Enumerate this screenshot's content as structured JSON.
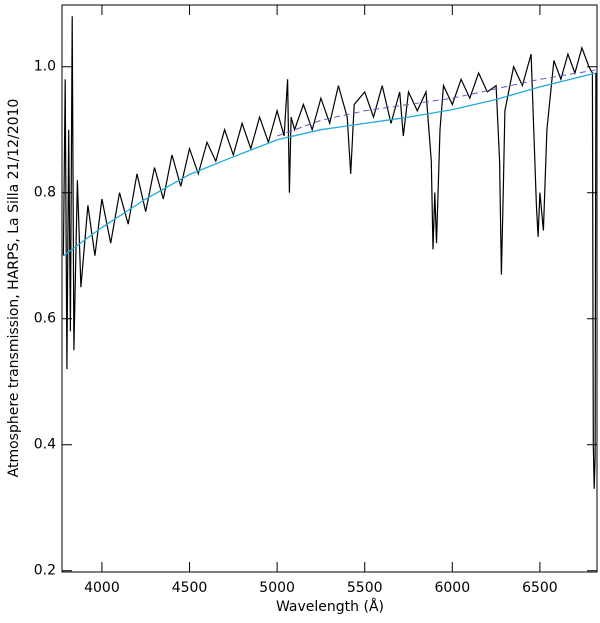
{
  "chart_data": {
    "type": "line",
    "xlabel": "Wavelength (Å)",
    "ylabel": "Atmosphere transmission, HARPS, La Silla 21/12/2010",
    "xlim": [
      3772,
      6826
    ],
    "ylim": [
      0.198,
      1.098
    ],
    "xticks": [
      4000,
      4500,
      5000,
      5500,
      6000,
      6500
    ],
    "yticks": [
      0.2,
      0.4,
      0.6,
      0.8,
      {
        "value": 1.0,
        "label": "1.0"
      }
    ],
    "series": [
      {
        "color": "#000000",
        "style": "solid",
        "x": [
          3780,
          3790,
          3800,
          3810,
          3820,
          3830,
          3840,
          3860,
          3880,
          3920,
          3960,
          4000,
          4050,
          4100,
          4150,
          4200,
          4250,
          4300,
          4350,
          4400,
          4450,
          4500,
          4550,
          4600,
          4650,
          4700,
          4750,
          4800,
          4850,
          4900,
          4950,
          5000,
          5040,
          5060,
          5070,
          5080,
          5100,
          5150,
          5200,
          5250,
          5300,
          5350,
          5400,
          5420,
          5440,
          5500,
          5550,
          5600,
          5650,
          5700,
          5720,
          5750,
          5800,
          5850,
          5880,
          5890,
          5900,
          5910,
          5930,
          5950,
          6000,
          6050,
          6100,
          6150,
          6200,
          6250,
          6270,
          6280,
          6290,
          6300,
          6350,
          6400,
          6450,
          6480,
          6490,
          6500,
          6520,
          6540,
          6580,
          6620,
          6660,
          6700,
          6740,
          6780,
          6800,
          6805,
          6810,
          6815,
          6820
        ],
        "values": [
          0.7,
          0.98,
          0.52,
          0.9,
          0.58,
          1.08,
          0.55,
          0.82,
          0.65,
          0.78,
          0.7,
          0.79,
          0.72,
          0.8,
          0.75,
          0.83,
          0.77,
          0.84,
          0.79,
          0.86,
          0.81,
          0.87,
          0.83,
          0.88,
          0.85,
          0.9,
          0.86,
          0.91,
          0.87,
          0.92,
          0.88,
          0.93,
          0.89,
          0.98,
          0.8,
          0.92,
          0.9,
          0.94,
          0.9,
          0.95,
          0.91,
          0.97,
          0.92,
          0.83,
          0.94,
          0.96,
          0.92,
          0.97,
          0.91,
          0.96,
          0.89,
          0.96,
          0.93,
          0.96,
          0.85,
          0.71,
          0.8,
          0.72,
          0.9,
          0.97,
          0.94,
          0.98,
          0.95,
          0.99,
          0.96,
          0.97,
          0.85,
          0.67,
          0.79,
          0.93,
          1.0,
          0.97,
          1.02,
          0.78,
          0.73,
          0.8,
          0.74,
          0.9,
          1.01,
          0.98,
          1.02,
          0.99,
          1.03,
          1.0,
          0.99,
          0.4,
          0.33,
          0.38,
          0.99
        ]
      },
      {
        "color": "#22aadd",
        "style": "solid",
        "x": [
          3780,
          4000,
          4250,
          4500,
          4750,
          5000,
          5250,
          5500,
          5750,
          6000,
          6250,
          6500,
          6820
        ],
        "values": [
          0.7,
          0.745,
          0.79,
          0.829,
          0.857,
          0.884,
          0.9,
          0.91,
          0.92,
          0.932,
          0.948,
          0.968,
          0.99
        ]
      },
      {
        "color": "#6655cc",
        "style": "dashed",
        "x": [
          5000,
          5250,
          5500,
          5750,
          6000,
          6250,
          6500,
          6820
        ],
        "values": [
          0.89,
          0.915,
          0.93,
          0.94,
          0.95,
          0.965,
          0.98,
          0.995
        ]
      }
    ]
  }
}
